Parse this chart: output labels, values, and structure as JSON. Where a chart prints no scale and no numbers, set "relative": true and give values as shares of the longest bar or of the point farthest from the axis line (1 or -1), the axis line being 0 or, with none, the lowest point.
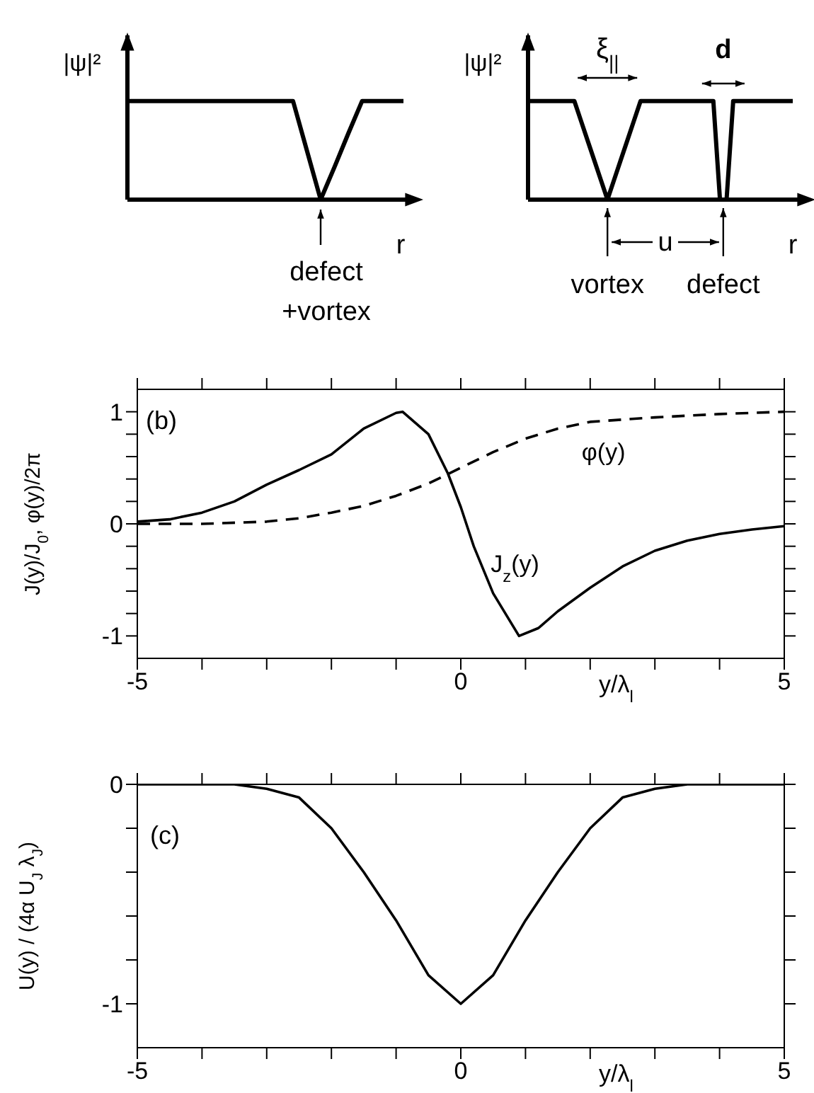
{
  "chart_data": [
    {
      "type": "line",
      "relative": true,
      "ylabel": "|ψ|²",
      "xlabel": "r",
      "categories": [
        null,
        null,
        null,
        null,
        null,
        null,
        null,
        null,
        null,
        null,
        null,
        null,
        null,
        null,
        null,
        null,
        null,
        null,
        null,
        null,
        null
      ],
      "series": [
        {
          "color": "#000000",
          "values": [
            1,
            1,
            1,
            1,
            1,
            1,
            1,
            1,
            1,
            1,
            1,
            1,
            1,
            0.5,
            0,
            0.33,
            0.67,
            1,
            1,
            1,
            1
          ]
        }
      ],
      "annotations": [
        "defect +vortex"
      ]
    },
    {
      "type": "line",
      "relative": true,
      "ylabel": "|ψ|²",
      "xlabel": "r",
      "categories": [
        null,
        null,
        null,
        null,
        null,
        null,
        null,
        null,
        null,
        null,
        null,
        null,
        null,
        null,
        null,
        null,
        null,
        null,
        null,
        null,
        null,
        null,
        null,
        null,
        null,
        null,
        null,
        null,
        null,
        null,
        null,
        null,
        null,
        null,
        null,
        null,
        null,
        null,
        null,
        null,
        null
      ],
      "series": [
        {
          "color": "#000000",
          "values": [
            1,
            1,
            1,
            1,
            1,
            1,
            1,
            1,
            0.8,
            0.6,
            0.4,
            0.2,
            0,
            0.2,
            0.4,
            0.6,
            0.8,
            1,
            1,
            1,
            1,
            1,
            1,
            1,
            1,
            1,
            1,
            1,
            1,
            0,
            0,
            1,
            1,
            1,
            1,
            1,
            1,
            1,
            1,
            1,
            1
          ]
        }
      ],
      "annotations": [
        "ξ$_{||}$",
        "d",
        "u",
        "vortex",
        "defect"
      ]
    },
    {
      "type": "line",
      "ylabel": "J(y)/J$_{0}$,  φ(y)/2π",
      "xlabel": "y/λ$_{l}$",
      "annotations": [
        "(b)"
      ],
      "xlim": [
        -5,
        5
      ],
      "xticks": [
        -5,
        {
          "value": -4,
          "label": null
        },
        {
          "value": -3,
          "label": null
        },
        {
          "value": -2,
          "label": null
        },
        {
          "value": -1,
          "label": null
        },
        0,
        {
          "value": 1,
          "label": null
        },
        {
          "value": 2,
          "label": null
        },
        {
          "value": 3,
          "label": null
        },
        {
          "value": 4,
          "label": null
        },
        5
      ],
      "ylim": [
        -1.2,
        1.2
      ],
      "yticks": [
        -1,
        {
          "value": -0.8,
          "label": null
        },
        {
          "value": -0.6,
          "label": null
        },
        {
          "value": -0.4,
          "label": null
        },
        {
          "value": -0.2,
          "label": null
        },
        0,
        {
          "value": 0.2,
          "label": null
        },
        {
          "value": 0.4,
          "label": null
        },
        {
          "value": 0.6,
          "label": null
        },
        {
          "value": 0.8,
          "label": null
        },
        1
      ],
      "series": [
        {
          "name": "J$_{z}$(y)",
          "color": "#000000",
          "line_style": "solid",
          "x": [
            -5,
            -4.5,
            -4,
            -3.5,
            -3,
            -2.5,
            -2,
            -1.5,
            -1,
            -0.9,
            -0.5,
            -0.2,
            0,
            0.2,
            0.5,
            0.9,
            1.2,
            1.5,
            2,
            2.5,
            3,
            3.5,
            4,
            4.5,
            5
          ],
          "values": [
            0.02,
            0.04,
            0.1,
            0.2,
            0.35,
            0.48,
            0.62,
            0.85,
            0.99,
            1,
            0.8,
            0.45,
            0.15,
            -0.2,
            -0.62,
            -1,
            -0.93,
            -0.78,
            -0.57,
            -0.38,
            -0.24,
            -0.15,
            -0.09,
            -0.05,
            -0.02
          ]
        },
        {
          "name": "φ(y)",
          "color": "#000000",
          "line_style": "dashed",
          "x": [
            -5,
            -4,
            -3,
            -2.5,
            -2,
            -1.5,
            -1,
            -0.5,
            0,
            0.5,
            1,
            1.5,
            2,
            2.5,
            3,
            4,
            5
          ],
          "values": [
            0,
            0,
            0.02,
            0.05,
            0.1,
            0.16,
            0.25,
            0.36,
            0.5,
            0.64,
            0.76,
            0.85,
            0.91,
            0.93,
            0.95,
            0.98,
            1
          ]
        }
      ]
    },
    {
      "type": "line",
      "ylabel": "U(y) / (4α U$_{J}$ λ$_{J}$)",
      "xlabel": "y/λ$_{l}$",
      "annotations": [
        "(c)"
      ],
      "xlim": [
        -5,
        5
      ],
      "xticks": [
        -5,
        {
          "value": -4,
          "label": null
        },
        {
          "value": -3,
          "label": null
        },
        {
          "value": -2,
          "label": null
        },
        {
          "value": -1,
          "label": null
        },
        0,
        {
          "value": 1,
          "label": null
        },
        {
          "value": 2,
          "label": null
        },
        {
          "value": 3,
          "label": null
        },
        {
          "value": 4,
          "label": null
        },
        5
      ],
      "ylim": [
        -1.2,
        0
      ],
      "yticks": [
        -1,
        {
          "value": -0.8,
          "label": null
        },
        {
          "value": -0.6,
          "label": null
        },
        {
          "value": -0.4,
          "label": null
        },
        {
          "value": -0.2,
          "label": null
        },
        0
      ],
      "series": [
        {
          "color": "#000000",
          "line_style": "solid",
          "x": [
            -5,
            -4,
            -3.5,
            -3,
            -2.5,
            -2,
            -1.5,
            -1,
            -0.5,
            0,
            0.5,
            1,
            1.5,
            2,
            2.5,
            3,
            3.5,
            4,
            5
          ],
          "values": [
            0,
            0,
            0,
            -0.02,
            -0.06,
            -0.2,
            -0.4,
            -0.62,
            -0.87,
            -1,
            -0.87,
            -0.62,
            -0.4,
            -0.2,
            -0.06,
            -0.02,
            0,
            0,
            0
          ]
        }
      ]
    }
  ]
}
